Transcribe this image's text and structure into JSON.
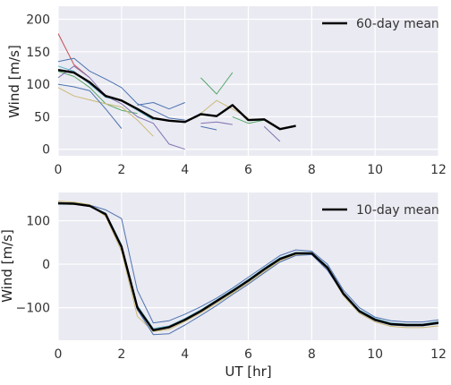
{
  "colors": {
    "plot_bg": "#EAEAF2",
    "grid": "#FFFFFF",
    "mean": "#000000",
    "palette": [
      "#4C72B0",
      "#55A868",
      "#C44E52",
      "#8172B2",
      "#CCB974",
      "#64B5CD"
    ]
  },
  "chart_data": [
    {
      "type": "line",
      "ylabel": "Wind [m/s]",
      "xlabel": "",
      "xlim": [
        0,
        12
      ],
      "ylim": [
        -10,
        220
      ],
      "xticks": [
        0,
        2,
        4,
        6,
        8,
        10,
        12
      ],
      "yticks": [
        0,
        50,
        100,
        150,
        200
      ],
      "grid": true,
      "legend": {
        "placement": "top-right",
        "entries": [
          "60-day mean"
        ]
      },
      "series": [
        {
          "name": "60-day mean",
          "role": "mean",
          "x": [
            0,
            0.5,
            1,
            1.5,
            2,
            2.5,
            3,
            3.5,
            4,
            4.5,
            5,
            5.5,
            6,
            6.5,
            7,
            7.5
          ],
          "values": [
            122,
            118,
            103,
            82,
            75,
            62,
            48,
            44,
            42,
            54,
            51,
            68,
            45,
            46,
            31,
            36
          ]
        },
        {
          "role": "trace",
          "color": "#C44E52",
          "x": [
            0,
            0.5,
            1
          ],
          "values": [
            178,
            130,
            110
          ]
        },
        {
          "role": "trace",
          "color": "#4C72B0",
          "x": [
            0,
            0.5,
            1,
            1.5,
            2,
            2.5,
            3,
            3.5,
            4
          ],
          "values": [
            135,
            140,
            120,
            108,
            95,
            70,
            60,
            48,
            45
          ]
        },
        {
          "role": "trace",
          "color": "#55A868",
          "x": [
            0,
            0.5,
            1,
            1.5,
            2,
            2.5
          ],
          "values": [
            120,
            112,
            95,
            70,
            60,
            55
          ]
        },
        {
          "role": "trace",
          "color": "#CCB974",
          "x": [
            0,
            0.5,
            1,
            1.5,
            2,
            2.5,
            3
          ],
          "values": [
            95,
            82,
            76,
            70,
            65,
            45,
            20
          ]
        },
        {
          "role": "trace",
          "color": "#8172B2",
          "x": [
            0,
            0.5,
            1,
            1.5,
            2,
            2.5,
            3,
            3.5,
            4
          ],
          "values": [
            110,
            128,
            110,
            82,
            70,
            50,
            40,
            8,
            0
          ]
        },
        {
          "role": "trace",
          "color": "#4C72B0",
          "x": [
            0,
            0.5,
            1,
            1.5,
            2
          ],
          "values": [
            100,
            96,
            90,
            62,
            32
          ]
        },
        {
          "role": "trace",
          "color": "#64B5CD",
          "x": [
            0,
            0.5,
            1,
            1.5,
            2,
            2.5,
            3
          ],
          "values": [
            128,
            120,
            100,
            80,
            75,
            60,
            45
          ]
        },
        {
          "role": "trace",
          "color": "#4C72B0",
          "x": [
            2.5,
            3,
            3.5,
            4
          ],
          "values": [
            68,
            72,
            62,
            72
          ]
        },
        {
          "role": "trace",
          "color": "#55A868",
          "x": [
            4.5,
            5,
            5.5
          ],
          "values": [
            110,
            85,
            118
          ]
        },
        {
          "role": "trace",
          "color": "#CCB974",
          "x": [
            4.5,
            5,
            5.5,
            6
          ],
          "values": [
            55,
            75,
            62,
            48
          ]
        },
        {
          "role": "trace",
          "color": "#4C72B0",
          "x": [
            4.5,
            5
          ],
          "values": [
            35,
            30
          ]
        },
        {
          "role": "trace",
          "color": "#8172B2",
          "x": [
            4.5,
            5,
            5.5
          ],
          "values": [
            40,
            42,
            38
          ]
        },
        {
          "role": "trace",
          "color": "#55A868",
          "x": [
            5.5,
            6,
            6.5
          ],
          "values": [
            50,
            40,
            45
          ]
        },
        {
          "role": "trace",
          "color": "#8172B2",
          "x": [
            6.5,
            7
          ],
          "values": [
            35,
            12
          ]
        }
      ]
    },
    {
      "type": "line",
      "ylabel": "Wind [m/s]",
      "xlabel": "UT [hr]",
      "xlim": [
        0,
        12
      ],
      "ylim": [
        -175,
        165
      ],
      "xticks": [
        0,
        2,
        4,
        6,
        8,
        10,
        12
      ],
      "yticks": [
        -100,
        0,
        100
      ],
      "grid": true,
      "legend": {
        "placement": "top-right",
        "entries": [
          "10-day mean"
        ]
      },
      "series": [
        {
          "name": "10-day mean",
          "role": "mean",
          "x": [
            0,
            0.5,
            1,
            1.5,
            2,
            2.5,
            3,
            3.5,
            4,
            4.5,
            5,
            5.5,
            6,
            6.5,
            7,
            7.5,
            8,
            8.5,
            9,
            9.5,
            10,
            10.5,
            11,
            11.5,
            12
          ],
          "values": [
            140,
            139,
            134,
            115,
            40,
            -100,
            -152,
            -145,
            -128,
            -108,
            -85,
            -62,
            -38,
            -12,
            12,
            25,
            25,
            -8,
            -68,
            -108,
            -128,
            -138,
            -140,
            -140,
            -135
          ]
        },
        {
          "role": "trace",
          "color": "#4C72B0",
          "x": [
            0,
            0.5,
            1,
            1.5,
            2,
            2.5,
            3,
            3.5,
            4,
            4.5,
            5,
            5.5,
            6,
            6.5,
            7,
            7.5,
            8,
            8.5,
            9,
            9.5,
            10,
            10.5,
            11,
            11.5,
            12
          ],
          "values": [
            142,
            141,
            136,
            125,
            105,
            -60,
            -135,
            -130,
            -115,
            -98,
            -78,
            -55,
            -30,
            -5,
            20,
            33,
            30,
            0,
            -60,
            -100,
            -122,
            -130,
            -133,
            -133,
            -128
          ]
        },
        {
          "role": "trace",
          "color": "#CCB974",
          "x": [
            0,
            0.5,
            1,
            1.5,
            2,
            2.5,
            3,
            3.5,
            4,
            4.5,
            5,
            5.5,
            6,
            6.5,
            7,
            7.5,
            8,
            8.5,
            9,
            9.5,
            10,
            10.5,
            11,
            11.5,
            12
          ],
          "values": [
            145,
            143,
            137,
            110,
            30,
            -120,
            -155,
            -150,
            -132,
            -112,
            -90,
            -67,
            -43,
            -17,
            8,
            22,
            22,
            -12,
            -73,
            -113,
            -133,
            -143,
            -146,
            -146,
            -142
          ]
        },
        {
          "role": "trace",
          "color": "#64B5CD",
          "x": [
            0,
            0.5,
            1,
            1.5,
            2,
            2.5,
            3,
            3.5,
            4,
            4.5,
            5,
            5.5,
            6,
            6.5,
            7,
            7.5,
            8,
            8.5,
            9,
            9.5,
            10,
            10.5,
            11,
            11.5,
            12
          ],
          "values": [
            138,
            138,
            133,
            118,
            45,
            -95,
            -148,
            -142,
            -125,
            -105,
            -82,
            -59,
            -35,
            -9,
            15,
            27,
            27,
            -5,
            -65,
            -105,
            -125,
            -135,
            -138,
            -138,
            -132
          ]
        },
        {
          "role": "trace",
          "color": "#4C72B0",
          "x": [
            0,
            0.5,
            1,
            1.5,
            2,
            2.5,
            3,
            3.5,
            4,
            4.5,
            5,
            5.5,
            6,
            6.5,
            7,
            7.5,
            8,
            8.5,
            9,
            9.5,
            10,
            10.5,
            11,
            11.5,
            12
          ],
          "values": [
            139,
            139,
            133,
            116,
            38,
            -105,
            -162,
            -160,
            -140,
            -118,
            -95,
            -70,
            -46,
            -20,
            5,
            20,
            22,
            -14,
            -70,
            -110,
            -130,
            -140,
            -142,
            -142,
            -137
          ]
        }
      ]
    }
  ]
}
